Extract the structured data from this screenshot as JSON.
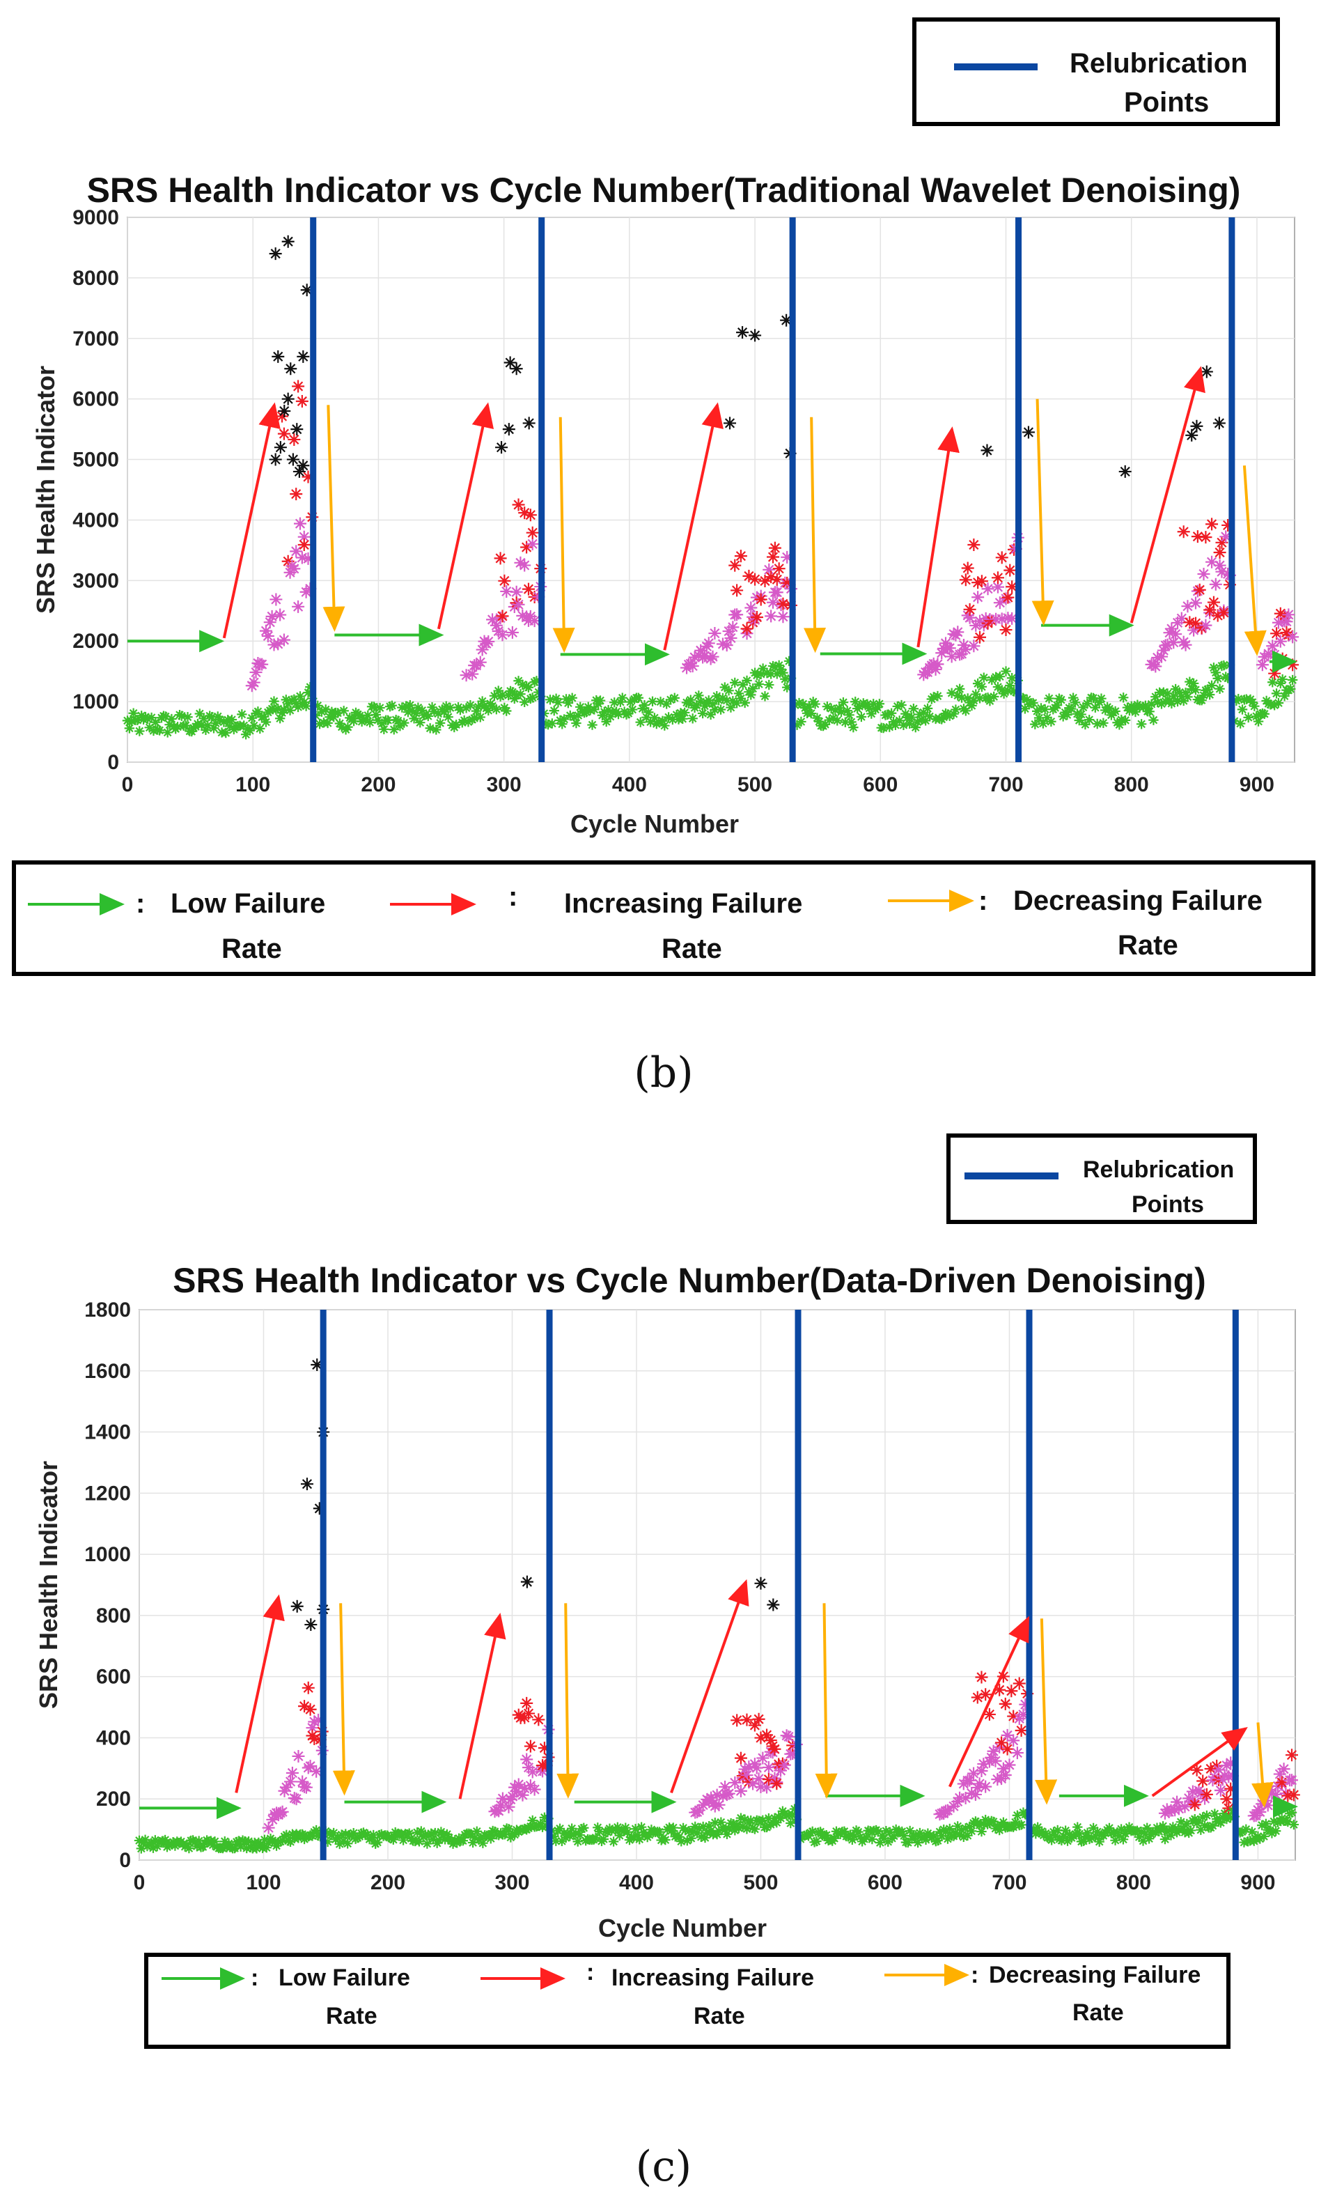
{
  "chart_data": [
    {
      "type": "scatter",
      "panel": "(b)",
      "title": "SRS Health Indicator vs Cycle Number(Traditional Wavelet Denoising)",
      "xlabel": "Cycle Number",
      "ylabel": "SRS Health Indicator",
      "xlim": [
        0,
        930
      ],
      "ylim": [
        0,
        9000
      ],
      "xticks": [
        0,
        100,
        200,
        300,
        400,
        500,
        600,
        700,
        800,
        900
      ],
      "yticks": [
        0,
        1000,
        2000,
        3000,
        4000,
        5000,
        6000,
        7000,
        8000,
        9000
      ],
      "relubrication_points": [
        148,
        330,
        530,
        710,
        880
      ],
      "relubrication_legend": "Relubrication Points",
      "segments": [
        {
          "start": 0,
          "end": 148,
          "low_until": 95,
          "peak": 6000,
          "base": 600
        },
        {
          "start": 150,
          "end": 330,
          "low_until": 265,
          "peak": 4200,
          "base": 700
        },
        {
          "start": 332,
          "end": 530,
          "low_until": 440,
          "peak": 3400,
          "base": 800
        },
        {
          "start": 532,
          "end": 710,
          "low_until": 630,
          "peak": 3600,
          "base": 750
        },
        {
          "start": 712,
          "end": 880,
          "low_until": 810,
          "peak": 3800,
          "base": 800
        },
        {
          "start": 882,
          "end": 930,
          "low_until": 900,
          "peak": 2400,
          "base": 800
        }
      ],
      "outliers": [
        [
          118,
          8400
        ],
        [
          128,
          8600
        ],
        [
          143,
          7800
        ],
        [
          140,
          6700
        ],
        [
          120,
          6700
        ],
        [
          130,
          6500
        ],
        [
          125,
          5800
        ],
        [
          135,
          5500
        ],
        [
          122,
          5200
        ],
        [
          132,
          5000
        ],
        [
          140,
          4900
        ],
        [
          137,
          4800
        ],
        [
          118,
          5000
        ],
        [
          128,
          6000
        ],
        [
          305,
          6600
        ],
        [
          310,
          6500
        ],
        [
          320,
          5600
        ],
        [
          304,
          5500
        ],
        [
          298,
          5200
        ],
        [
          490,
          7100
        ],
        [
          500,
          7050
        ],
        [
          525,
          7300
        ],
        [
          480,
          5600
        ],
        [
          528,
          5100
        ],
        [
          685,
          5150
        ],
        [
          718,
          5450
        ],
        [
          795,
          4800
        ],
        [
          860,
          6450
        ],
        [
          852,
          5550
        ],
        [
          848,
          5400
        ],
        [
          870,
          5600
        ]
      ],
      "arrows": {
        "low": [
          [
            0,
            2000,
            75,
            2000
          ],
          [
            165,
            2100,
            250,
            2100
          ],
          [
            345,
            1780,
            430,
            1780
          ],
          [
            552,
            1790,
            635,
            1790
          ],
          [
            728,
            2260,
            800,
            2260
          ],
          [
            910,
            1660,
            930,
            1660
          ]
        ],
        "increasing": [
          [
            77,
            2050,
            117,
            5900
          ],
          [
            248,
            2200,
            287,
            5900
          ],
          [
            428,
            1850,
            470,
            5900
          ],
          [
            630,
            1900,
            657,
            5500
          ],
          [
            800,
            2300,
            855,
            6500
          ]
        ],
        "decreasing": [
          [
            160,
            5900,
            165,
            2200
          ],
          [
            345,
            5700,
            348,
            1850
          ],
          [
            545,
            5700,
            548,
            1850
          ],
          [
            725,
            6000,
            730,
            2300
          ],
          [
            890,
            4900,
            900,
            1800
          ]
        ]
      },
      "legend": {
        "low": "Low Failure Rate",
        "increasing": "Increasing Failure Rate",
        "decreasing": "Decreasing Failure Rate"
      }
    },
    {
      "type": "scatter",
      "panel": "(c)",
      "title": "SRS Health Indicator vs Cycle Number(Data-Driven Denoising)",
      "xlabel": "Cycle Number",
      "ylabel": "SRS Health Indicator",
      "xlim": [
        0,
        930
      ],
      "ylim": [
        0,
        1800
      ],
      "xticks": [
        0,
        100,
        200,
        300,
        400,
        500,
        600,
        700,
        800,
        900
      ],
      "yticks": [
        0,
        200,
        400,
        600,
        800,
        1000,
        1200,
        1400,
        1600,
        1800
      ],
      "relubrication_points": [
        148,
        330,
        530,
        716,
        882
      ],
      "relubrication_legend": "Relubrication Points",
      "segments": [
        {
          "start": 0,
          "end": 148,
          "low_until": 100,
          "peak": 650,
          "base": 50
        },
        {
          "start": 150,
          "end": 330,
          "low_until": 280,
          "peak": 500,
          "base": 70
        },
        {
          "start": 332,
          "end": 530,
          "low_until": 440,
          "peak": 450,
          "base": 80
        },
        {
          "start": 532,
          "end": 716,
          "low_until": 640,
          "peak": 600,
          "base": 75
        },
        {
          "start": 718,
          "end": 882,
          "low_until": 820,
          "peak": 300,
          "base": 80
        },
        {
          "start": 884,
          "end": 930,
          "low_until": 895,
          "peak": 350,
          "base": 75
        }
      ],
      "outliers": [
        [
          143,
          1620
        ],
        [
          148,
          1400
        ],
        [
          135,
          1230
        ],
        [
          145,
          1150
        ],
        [
          127,
          830
        ],
        [
          138,
          770
        ],
        [
          148,
          820
        ],
        [
          312,
          910
        ],
        [
          500,
          905
        ],
        [
          510,
          835
        ]
      ],
      "arrows": {
        "low": [
          [
            0,
            170,
            80,
            170
          ],
          [
            165,
            190,
            245,
            190
          ],
          [
            350,
            190,
            430,
            190
          ],
          [
            552,
            210,
            630,
            210
          ],
          [
            740,
            210,
            810,
            210
          ],
          [
            915,
            175,
            930,
            175
          ]
        ],
        "increasing": [
          [
            78,
            220,
            112,
            860
          ],
          [
            258,
            200,
            290,
            800
          ],
          [
            428,
            220,
            488,
            910
          ],
          [
            652,
            240,
            715,
            790
          ],
          [
            815,
            210,
            890,
            430
          ]
        ],
        "decreasing": [
          [
            162,
            840,
            165,
            220
          ],
          [
            343,
            840,
            345,
            210
          ],
          [
            551,
            840,
            553,
            210
          ],
          [
            726,
            790,
            730,
            190
          ],
          [
            900,
            450,
            905,
            180
          ]
        ]
      },
      "legend": {
        "low": "Low Failure Rate",
        "increasing": "Increasing Failure Rate",
        "decreasing": "Decreasing Failure Rate"
      }
    }
  ],
  "figure": {
    "panel_b": {
      "caption": "(b)",
      "relub_label_line1": "Relubrication",
      "relub_label_line2": "Points",
      "legend_low_line1": "Low Failure",
      "legend_low_line2": "Rate",
      "legend_inc_line1": "Increasing Failure",
      "legend_inc_line2": "Rate",
      "legend_dec_line1": "Decreasing Failure",
      "legend_dec_line2": "Rate",
      "colon": ":"
    },
    "panel_c": {
      "caption": "(c)",
      "relub_label_line1": "Relubrication",
      "relub_label_line2": "Points",
      "legend_low_line1": "Low Failure",
      "legend_low_line2": "Rate",
      "legend_inc_line1": "Increasing Failure",
      "legend_inc_line2": "Rate",
      "legend_dec_line1": "Decreasing Failure",
      "legend_dec_line2": "Rate",
      "colon": ":"
    }
  },
  "colors": {
    "low": "#2ebd2e",
    "increasing": "#ff2020",
    "decreasing": "#ffb000",
    "relub": "#0b47a1",
    "red_points": "#ee1c24",
    "magenta_points": "#d65ac8",
    "green_points": "#3cbf2a",
    "black_points": "#111111"
  }
}
